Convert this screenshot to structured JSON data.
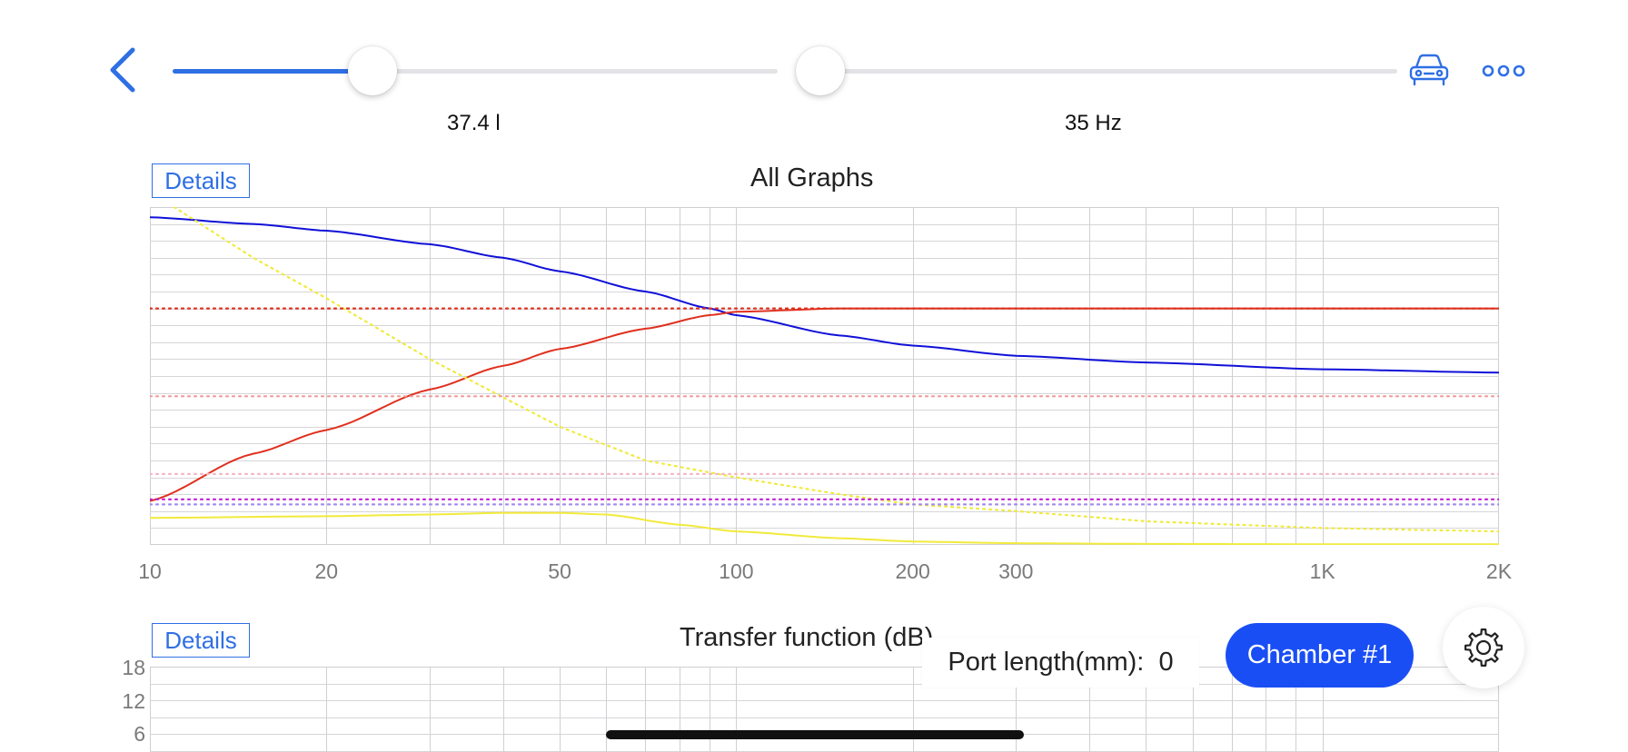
{
  "toolbar": {
    "back_icon": "chevron-left-icon",
    "car_icon": "car-icon",
    "more_icon": "ellipsis-icon",
    "accent": "#2f6fe4"
  },
  "sliders": [
    {
      "name": "volume",
      "value_label": "37.4 l",
      "fill_fraction": 0.33
    },
    {
      "name": "tuning",
      "value_label": "35 Hz",
      "fill_fraction": 0.0
    }
  ],
  "chart1": {
    "details_label": "Details",
    "title": "All Graphs",
    "chart_data": {
      "type": "line",
      "x_scale": "log",
      "xlim": [
        10,
        2000
      ],
      "x_ticks": [
        {
          "value": 10,
          "label": "10"
        },
        {
          "value": 20,
          "label": "20"
        },
        {
          "value": 50,
          "label": "50"
        },
        {
          "value": 100,
          "label": "100"
        },
        {
          "value": 200,
          "label": "200"
        },
        {
          "value": 300,
          "label": "300"
        },
        {
          "value": 1000,
          "label": "1K"
        },
        {
          "value": 2000,
          "label": "2K"
        }
      ],
      "ylim": [
        0,
        1
      ],
      "grid": true,
      "series": [
        {
          "color": "#1010d8",
          "style": "solid",
          "x": [
            10,
            15,
            20,
            30,
            40,
            50,
            70,
            90,
            100,
            150,
            200,
            300,
            500,
            1000,
            2000
          ],
          "y": [
            0.97,
            0.95,
            0.93,
            0.89,
            0.85,
            0.81,
            0.75,
            0.7,
            0.68,
            0.62,
            0.59,
            0.56,
            0.54,
            0.52,
            0.51
          ]
        },
        {
          "color": "#e0301e",
          "style": "solid",
          "x": [
            10,
            15,
            20,
            30,
            40,
            50,
            70,
            90,
            100,
            150,
            200,
            300,
            500,
            1000,
            2000
          ],
          "y": [
            0.13,
            0.27,
            0.34,
            0.46,
            0.53,
            0.58,
            0.64,
            0.68,
            0.69,
            0.7,
            0.7,
            0.7,
            0.7,
            0.7,
            0.7
          ]
        },
        {
          "color": "#f1ea3c",
          "style": "solid",
          "x": [
            10,
            20,
            30,
            40,
            50,
            60,
            80,
            100,
            150,
            200,
            300,
            500,
            1000,
            2000
          ],
          "y": [
            0.08,
            0.085,
            0.09,
            0.095,
            0.095,
            0.09,
            0.06,
            0.04,
            0.02,
            0.01,
            0.005,
            0.003,
            0.002,
            0.002
          ]
        },
        {
          "color": "#f1ea3c",
          "style": "dotted",
          "x": [
            11,
            15,
            20,
            30,
            50,
            70,
            100,
            150,
            200,
            300,
            500,
            1000,
            2000
          ],
          "y": [
            1.0,
            0.85,
            0.73,
            0.55,
            0.35,
            0.25,
            0.2,
            0.15,
            0.12,
            0.1,
            0.07,
            0.05,
            0.04
          ]
        },
        {
          "color": "#e0301e",
          "style": "dotted",
          "x": [
            10,
            2000
          ],
          "y": [
            0.7,
            0.7
          ]
        },
        {
          "color": "#f09a9a",
          "style": "dotted",
          "x": [
            10,
            2000
          ],
          "y": [
            0.44,
            0.44
          ]
        },
        {
          "color": "#f3b8c8",
          "style": "dotted",
          "x": [
            10,
            2000
          ],
          "y": [
            0.21,
            0.21
          ]
        },
        {
          "color": "#c21ed4",
          "style": "dotted",
          "x": [
            10,
            2000
          ],
          "y": [
            0.135,
            0.135
          ]
        },
        {
          "color": "#a18bf0",
          "style": "dotted",
          "x": [
            10,
            2000
          ],
          "y": [
            0.12,
            0.12
          ]
        }
      ]
    }
  },
  "chart2": {
    "details_label": "Details",
    "title": "Transfer function (dB)",
    "chart_data": {
      "type": "line",
      "x_scale": "log",
      "xlim": [
        10,
        2000
      ],
      "y_ticks": [
        {
          "value": 18,
          "label": "18"
        },
        {
          "value": 12,
          "label": "12"
        },
        {
          "value": 6,
          "label": "6"
        }
      ],
      "grid": true,
      "series": []
    }
  },
  "port_info": {
    "label": "Port length(mm):",
    "value": "0"
  },
  "chamber_button": {
    "label": "Chamber #1",
    "color": "#1a4ef5"
  },
  "settings": {
    "icon": "gear-icon"
  }
}
